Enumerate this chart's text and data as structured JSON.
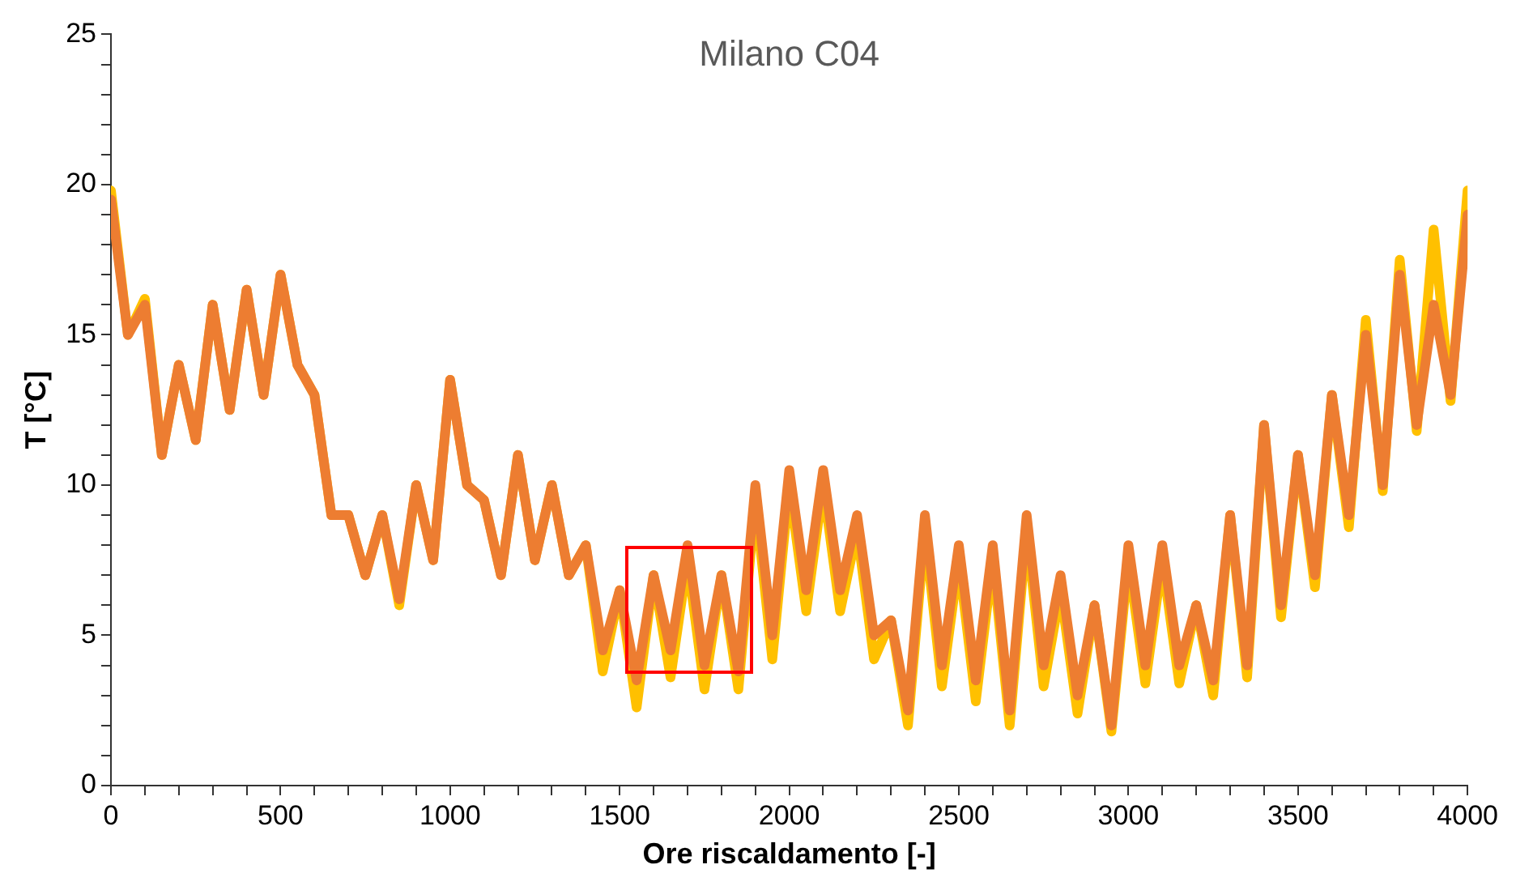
{
  "chart_data": {
    "type": "line",
    "title": "Milano C04",
    "xlabel": "Ore riscaldamento [-]",
    "ylabel": "T [°C]",
    "x": [
      0,
      50,
      100,
      150,
      200,
      250,
      300,
      350,
      400,
      450,
      500,
      550,
      600,
      650,
      700,
      750,
      800,
      850,
      900,
      950,
      1000,
      1050,
      1100,
      1150,
      1200,
      1250,
      1300,
      1350,
      1400,
      1450,
      1500,
      1550,
      1600,
      1650,
      1700,
      1750,
      1800,
      1850,
      1900,
      1950,
      2000,
      2050,
      2100,
      2150,
      2200,
      2250,
      2300,
      2350,
      2400,
      2450,
      2500,
      2550,
      2600,
      2650,
      2700,
      2750,
      2800,
      2850,
      2900,
      2950,
      3000,
      3050,
      3100,
      3150,
      3200,
      3250,
      3300,
      3350,
      3400,
      3450,
      3500,
      3550,
      3600,
      3650,
      3700,
      3750,
      3800,
      3850,
      3900,
      3950,
      4000
    ],
    "series": [
      {
        "color": "#ffc000",
        "values": [
          19.8,
          15,
          16.2,
          11,
          14,
          11.5,
          16,
          12.5,
          16.5,
          13,
          17,
          14,
          13,
          9,
          9,
          7,
          9,
          6,
          10,
          7.5,
          13.5,
          10,
          9.5,
          7,
          11,
          7.5,
          10,
          7,
          8,
          3.8,
          6.5,
          2.6,
          7,
          3.6,
          7.5,
          3.2,
          7,
          3.2,
          9.5,
          4.2,
          10,
          5.8,
          10,
          5.8,
          8.5,
          4.2,
          5.5,
          2.0,
          8.5,
          3.3,
          7.5,
          2.8,
          7.5,
          2.0,
          8.5,
          3.3,
          6.5,
          2.4,
          6,
          1.8,
          7.5,
          3.4,
          7.5,
          3.4,
          6,
          3.0,
          9,
          3.6,
          12,
          5.6,
          11,
          6.6,
          13,
          8.6,
          15.5,
          9.8,
          17.5,
          11.8,
          18.5,
          12.8,
          19.8
        ]
      },
      {
        "color": "#ed7d31",
        "values": [
          19.5,
          15,
          16,
          11,
          14,
          11.5,
          16,
          12.5,
          16.5,
          13,
          17,
          14,
          13,
          9,
          9,
          7,
          9,
          6.2,
          10,
          7.5,
          13.5,
          10,
          9.5,
          7,
          11,
          7.5,
          10,
          7,
          8,
          4.5,
          6.5,
          3.5,
          7,
          4.5,
          8,
          4,
          7,
          3.8,
          10,
          5,
          10.5,
          6.5,
          10.5,
          6.5,
          9,
          5,
          5.5,
          2.5,
          9,
          4,
          8,
          3.5,
          8,
          2.5,
          9,
          4,
          7,
          3,
          6,
          2,
          8,
          4,
          8,
          4,
          6,
          3.5,
          9,
          4,
          12,
          6,
          11,
          7,
          13,
          9,
          15,
          10,
          17,
          12,
          16,
          13,
          19
        ]
      }
    ],
    "xlim": [
      0,
      4000
    ],
    "xticks": [
      0,
      {
        "value": 100,
        "label": null
      },
      {
        "value": 200,
        "label": null
      },
      {
        "value": 300,
        "label": null
      },
      {
        "value": 400,
        "label": null
      },
      500,
      {
        "value": 600,
        "label": null
      },
      {
        "value": 700,
        "label": null
      },
      {
        "value": 800,
        "label": null
      },
      {
        "value": 900,
        "label": null
      },
      1000,
      {
        "value": 1100,
        "label": null
      },
      {
        "value": 1200,
        "label": null
      },
      {
        "value": 1300,
        "label": null
      },
      {
        "value": 1400,
        "label": null
      },
      1500,
      {
        "value": 1600,
        "label": null
      },
      {
        "value": 1700,
        "label": null
      },
      {
        "value": 1800,
        "label": null
      },
      {
        "value": 1900,
        "label": null
      },
      2000,
      {
        "value": 2100,
        "label": null
      },
      {
        "value": 2200,
        "label": null
      },
      {
        "value": 2300,
        "label": null
      },
      {
        "value": 2400,
        "label": null
      },
      2500,
      {
        "value": 2600,
        "label": null
      },
      {
        "value": 2700,
        "label": null
      },
      {
        "value": 2800,
        "label": null
      },
      {
        "value": 2900,
        "label": null
      },
      3000,
      {
        "value": 3100,
        "label": null
      },
      {
        "value": 3200,
        "label": null
      },
      {
        "value": 3300,
        "label": null
      },
      {
        "value": 3400,
        "label": null
      },
      3500,
      {
        "value": 3600,
        "label": null
      },
      {
        "value": 3700,
        "label": null
      },
      {
        "value": 3800,
        "label": null
      },
      {
        "value": 3900,
        "label": null
      },
      4000
    ],
    "ylim": [
      0,
      25
    ],
    "yticks": [
      0,
      {
        "value": 1,
        "label": null
      },
      {
        "value": 2,
        "label": null
      },
      {
        "value": 3,
        "label": null
      },
      {
        "value": 4,
        "label": null
      },
      5,
      {
        "value": 6,
        "label": null
      },
      {
        "value": 7,
        "label": null
      },
      {
        "value": 8,
        "label": null
      },
      {
        "value": 9,
        "label": null
      },
      10,
      {
        "value": 11,
        "label": null
      },
      {
        "value": 12,
        "label": null
      },
      {
        "value": 13,
        "label": null
      },
      {
        "value": 14,
        "label": null
      },
      15,
      {
        "value": 16,
        "label": null
      },
      {
        "value": 17,
        "label": null
      },
      {
        "value": 18,
        "label": null
      },
      {
        "value": 19,
        "label": null
      },
      20,
      {
        "value": 21,
        "label": null
      },
      {
        "value": 22,
        "label": null
      },
      {
        "value": 23,
        "label": null
      },
      {
        "value": 24,
        "label": null
      },
      25
    ],
    "grid": false,
    "marker": "none",
    "line_style": "solid"
  }
}
